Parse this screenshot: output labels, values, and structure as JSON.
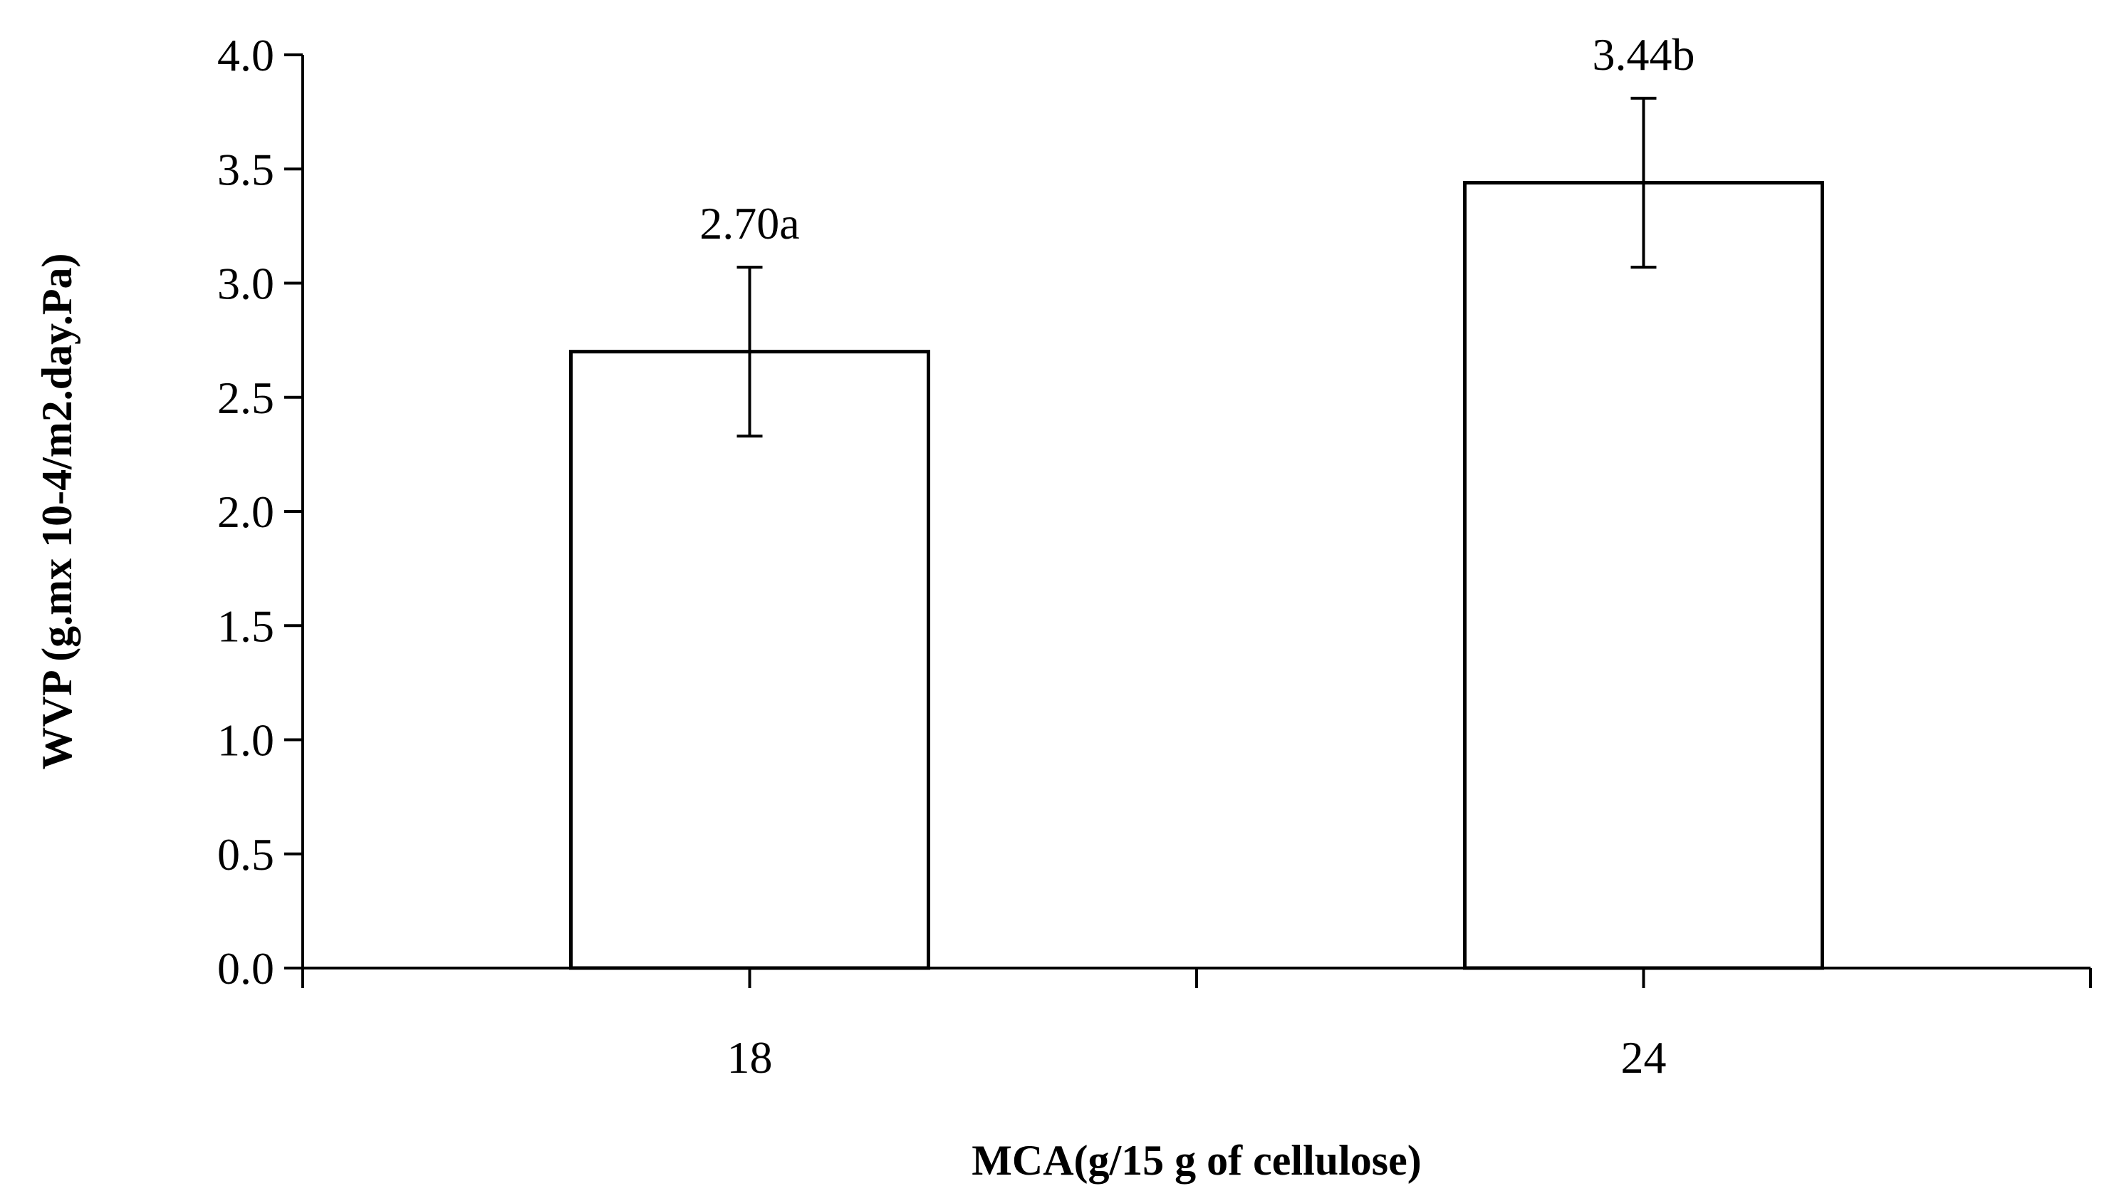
{
  "chart_data": {
    "type": "bar",
    "categories": [
      "18",
      "24"
    ],
    "values": [
      2.7,
      3.44
    ],
    "errors": [
      0.37,
      0.37
    ],
    "data_labels": [
      "2.70a",
      "3.44b"
    ],
    "ylim": [
      0,
      4.0
    ],
    "yticks": [
      "0.0",
      "0.5",
      "1.0",
      "1.5",
      "2.0",
      "2.5",
      "3.0",
      "3.5",
      "4.0"
    ],
    "xlabel": "MCA(g/15 g of cellulose)",
    "ylabel": "WVP (g.mx 10-4/m2.day.Pa)",
    "title": "",
    "grid": false,
    "legend": "none",
    "colors": {
      "bar_fill": "#ffffff",
      "bar_stroke": "#000000"
    }
  }
}
